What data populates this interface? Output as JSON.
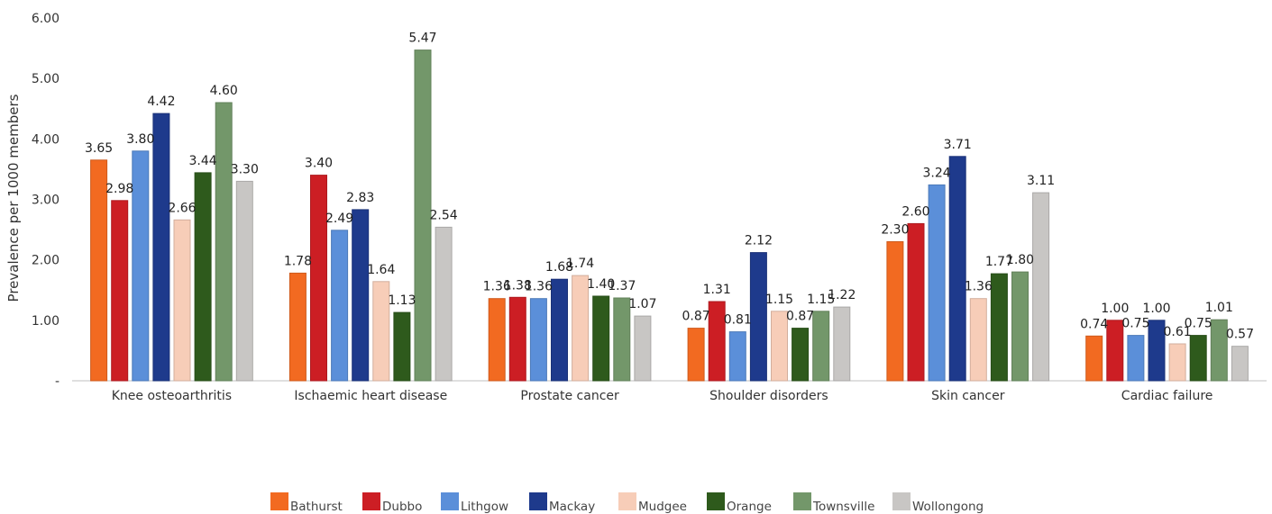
{
  "chart_data": {
    "type": "bar",
    "title": "",
    "xlabel": "",
    "ylabel": "Prevalence per 1000 members",
    "ylim": [
      0,
      6
    ],
    "yticks": [
      "-",
      "1.00",
      "2.00",
      "3.00",
      "4.00",
      "5.00",
      "6.00"
    ],
    "grid": false,
    "legend_position": "bottom",
    "categories": [
      "Knee osteoarthritis",
      "Ischaemic heart disease",
      "Prostate cancer",
      "Shoulder disorders",
      "Skin cancer",
      "Cardiac failure"
    ],
    "series": [
      {
        "name": "Bathurst",
        "color": "#F26A21",
        "values": [
          3.65,
          1.78,
          1.36,
          0.87,
          2.3,
          0.74
        ],
        "labels": [
          "3.65",
          "1.78",
          "1.36",
          "0.87",
          "2.30",
          "0.74"
        ]
      },
      {
        "name": "Dubbo",
        "color": "#CC1E24",
        "values": [
          2.98,
          3.4,
          1.38,
          1.31,
          2.6,
          1.0
        ],
        "labels": [
          "2.98",
          "3.40",
          "1.38",
          "1.31",
          "2.60",
          "1.00"
        ]
      },
      {
        "name": "Lithgow",
        "color": "#5B8FD9",
        "values": [
          3.8,
          2.49,
          1.36,
          0.81,
          3.24,
          0.75
        ],
        "labels": [
          "3.80",
          "2.49",
          "1.36",
          "0.81",
          "3.24",
          "0.75"
        ]
      },
      {
        "name": "Mackay",
        "color": "#1E3A8C",
        "values": [
          4.42,
          2.83,
          1.68,
          2.12,
          3.71,
          1.0
        ],
        "labels": [
          "4.42",
          "2.83",
          "1.68",
          "2.12",
          "3.71",
          "1.00"
        ]
      },
      {
        "name": "Mudgee",
        "color": "#F7CDB8",
        "values": [
          2.66,
          1.64,
          1.74,
          1.15,
          1.36,
          0.61
        ],
        "labels": [
          "2.66",
          "1.64",
          "1.74",
          "1.15",
          "1.36",
          "0.61"
        ]
      },
      {
        "name": "Orange",
        "color": "#2E5A1C",
        "values": [
          3.44,
          1.13,
          1.4,
          0.87,
          1.77,
          0.75
        ],
        "labels": [
          "3.44",
          "1.13",
          "1.40",
          "0.87",
          "1.77",
          "0.75"
        ]
      },
      {
        "name": "Townsville",
        "color": "#73976A",
        "values": [
          4.6,
          5.47,
          1.37,
          1.15,
          1.8,
          1.01
        ],
        "labels": [
          "4.60",
          "5.47",
          "1.37",
          "1.15",
          "1.80",
          "1.01"
        ]
      },
      {
        "name": "Wollongong",
        "color": "#C8C6C4",
        "values": [
          3.3,
          2.54,
          1.07,
          1.22,
          3.11,
          0.57
        ],
        "labels": [
          "3.30",
          "2.54",
          "1.07",
          "1.22",
          "3.11",
          "0.57"
        ]
      }
    ]
  }
}
